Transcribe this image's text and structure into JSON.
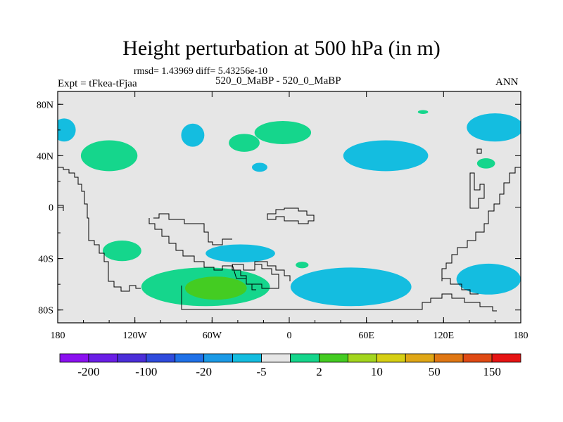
{
  "header": {
    "title": "Height perturbation at 500 hPa (in m)",
    "stats": "rmsd= 1.43969 diff= 5.43256e-10",
    "expt": "Expt = tFkea-tFjaa",
    "case": "520_0_MaBP - 520_0_MaBP",
    "season": "ANN"
  },
  "chart_data": {
    "type": "heatmap",
    "title": "Height perturbation at 500 hPa (in m)",
    "xlabel": "",
    "ylabel": "",
    "xlim": [
      -180,
      180
    ],
    "ylim": [
      -90,
      90
    ],
    "x_ticks": [
      {
        "value": -180,
        "label": "180"
      },
      {
        "value": -120,
        "label": "120W"
      },
      {
        "value": -60,
        "label": "60W"
      },
      {
        "value": 0,
        "label": "0"
      },
      {
        "value": 60,
        "label": "60E"
      },
      {
        "value": 120,
        "label": "120E"
      },
      {
        "value": 180,
        "label": "180"
      }
    ],
    "y_ticks": [
      {
        "value": 80,
        "label": "80N"
      },
      {
        "value": 40,
        "label": "40N"
      },
      {
        "value": 0,
        "label": "0"
      },
      {
        "value": -40,
        "label": "40S"
      },
      {
        "value": -80,
        "label": "80S"
      }
    ],
    "colorbar": {
      "labels": [
        {
          "text": "-200",
          "boundary": 1
        },
        {
          "text": "-100",
          "boundary": 3
        },
        {
          "text": "-20",
          "boundary": 5
        },
        {
          "text": "-5",
          "boundary": 7
        },
        {
          "text": "2",
          "boundary": 9
        },
        {
          "text": "10",
          "boundary": 11
        },
        {
          "text": "50",
          "boundary": 13
        },
        {
          "text": "150",
          "boundary": 15
        }
      ],
      "colors": [
        "#8b10f0",
        "#6a1ee6",
        "#4b2ed9",
        "#2f4bdd",
        "#1f71e8",
        "#1b9ae6",
        "#14bde0",
        "#e6e6e6",
        "#15d68c",
        "#44cc22",
        "#a3d61e",
        "#d6cf14",
        "#e0a716",
        "#e07714",
        "#e04a14",
        "#e61414"
      ]
    },
    "background_color": "#e6e6e6",
    "anomalies": [
      {
        "lon": -175,
        "lat": 60,
        "rx": 9,
        "ry": 9,
        "color": "#14bde0",
        "class": "negative"
      },
      {
        "lon": -140,
        "lat": 40,
        "rx": 22,
        "ry": 12,
        "color": "#15d68c",
        "class": "positive"
      },
      {
        "lon": -75,
        "lat": 56,
        "rx": 9,
        "ry": 9,
        "color": "#14bde0",
        "class": "negative"
      },
      {
        "lon": -5,
        "lat": 58,
        "rx": 22,
        "ry": 9,
        "color": "#15d68c",
        "class": "positive"
      },
      {
        "lon": -35,
        "lat": 50,
        "rx": 12,
        "ry": 7,
        "color": "#15d68c",
        "class": "positive"
      },
      {
        "lon": -23,
        "lat": 31,
        "rx": 6,
        "ry": 3.5,
        "color": "#14bde0",
        "class": "negative"
      },
      {
        "lon": 75,
        "lat": 40,
        "rx": 33,
        "ry": 12,
        "color": "#14bde0",
        "class": "negative"
      },
      {
        "lon": 104,
        "lat": 74,
        "rx": 4,
        "ry": 1.5,
        "color": "#15d68c",
        "class": "positive"
      },
      {
        "lon": 160,
        "lat": 62,
        "rx": 22,
        "ry": 11,
        "color": "#14bde0",
        "class": "negative"
      },
      {
        "lon": 153,
        "lat": 34,
        "rx": 7,
        "ry": 4,
        "color": "#15d68c",
        "class": "positive"
      },
      {
        "lon": -130,
        "lat": -34,
        "rx": 15,
        "ry": 8,
        "color": "#15d68c",
        "class": "positive"
      },
      {
        "lon": -38,
        "lat": -36,
        "rx": 27,
        "ry": 7,
        "color": "#14bde0",
        "class": "negative"
      },
      {
        "lon": 10,
        "lat": -45,
        "rx": 5,
        "ry": 2.5,
        "color": "#15d68c",
        "class": "positive"
      },
      {
        "lon": -65,
        "lat": -62,
        "rx": 50,
        "ry": 15,
        "color": "#15d68c",
        "class": "positive"
      },
      {
        "lon": -57,
        "lat": -63,
        "rx": 24,
        "ry": 9,
        "color": "#44cc22",
        "class": "positive"
      },
      {
        "lon": 48,
        "lat": -62,
        "rx": 47,
        "ry": 15,
        "color": "#14bde0",
        "class": "negative"
      },
      {
        "lon": 155,
        "lat": -56,
        "rx": 25,
        "ry": 12,
        "color": "#14bde0",
        "class": "negative"
      }
    ]
  }
}
